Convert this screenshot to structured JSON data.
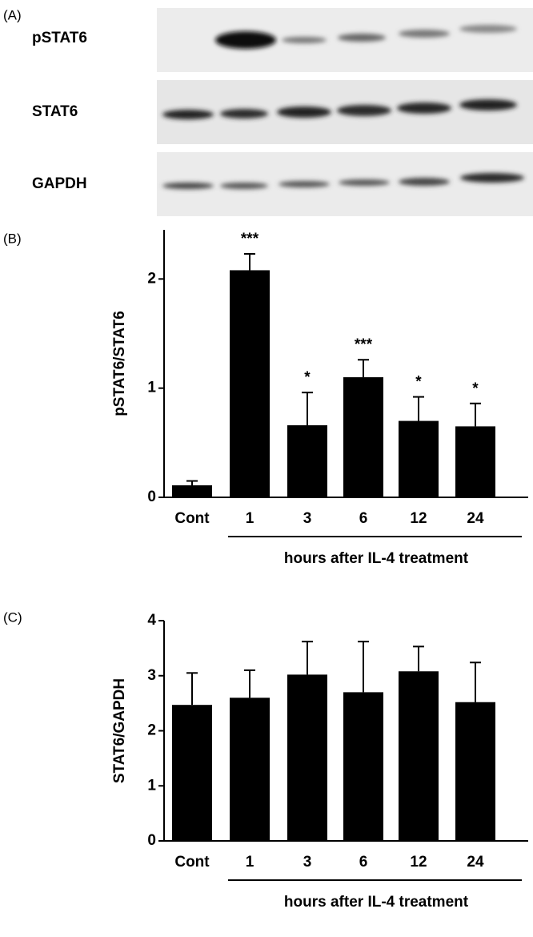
{
  "blot": {
    "panel_label": "(A)",
    "rows": [
      "pSTAT6",
      "STAT6",
      "GAPDH"
    ]
  },
  "chart_data": [
    {
      "type": "bar",
      "panel_label": "(B)",
      "y_label": "pSTAT6/STAT6",
      "x_label": "hours after IL-4 treatment",
      "categories": [
        "Cont",
        "1",
        "3",
        "6",
        "12",
        "24"
      ],
      "values": [
        0.11,
        2.08,
        0.66,
        1.1,
        0.7,
        0.65
      ],
      "errors": [
        0.04,
        0.15,
        0.3,
        0.16,
        0.22,
        0.21
      ],
      "annotations": [
        null,
        "***",
        "*",
        "***",
        "*",
        "*"
      ],
      "color": "#000000",
      "ylim": [
        0,
        2.45
      ],
      "yticks": [
        0,
        1,
        2
      ]
    },
    {
      "type": "bar",
      "panel_label": "(C)",
      "y_label": "STAT6/GAPDH",
      "x_label": "hours after IL-4 treatment",
      "categories": [
        "Cont",
        "1",
        "3",
        "6",
        "12",
        "24"
      ],
      "values": [
        2.47,
        2.6,
        3.02,
        2.7,
        3.08,
        2.52
      ],
      "errors": [
        0.58,
        0.5,
        0.6,
        0.92,
        0.45,
        0.72
      ],
      "color": "#000000",
      "ylim": [
        0,
        4
      ],
      "yticks": [
        0,
        1,
        2,
        3,
        4
      ]
    }
  ]
}
